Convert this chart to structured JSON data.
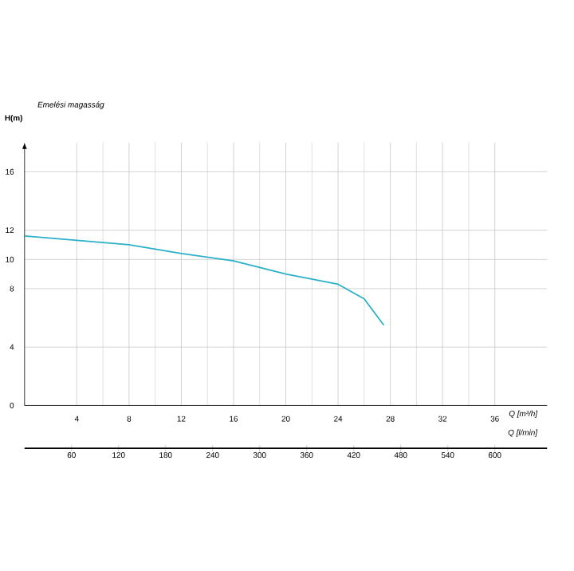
{
  "chart_data": {
    "type": "line",
    "ylabel": "H(m)",
    "xlabel": "Q [m³/h]",
    "x2label": "Q [l/min]",
    "annotations": [
      "Emelési magasság"
    ],
    "x": [
      0,
      4,
      8,
      12,
      16,
      20,
      24,
      26,
      27.5
    ],
    "series": [
      {
        "color": "#2ab0c8",
        "values": [
          11.6,
          11.3,
          11.0,
          10.4,
          9.9,
          9.0,
          8.3,
          7.3,
          5.5
        ]
      }
    ],
    "xlim": [
      0,
      40
    ],
    "xticks": [
      4,
      8,
      12,
      16,
      20,
      24,
      28,
      32,
      36
    ],
    "ylim": [
      0,
      18
    ],
    "yticks": [
      0,
      4,
      8,
      10,
      12,
      16
    ],
    "x2lim": [
      0,
      666.7
    ],
    "x2ticks": [
      60,
      120,
      180,
      240,
      300,
      360,
      420,
      480,
      540,
      600
    ],
    "grid": true,
    "marker": "none",
    "line_style": "solid"
  }
}
